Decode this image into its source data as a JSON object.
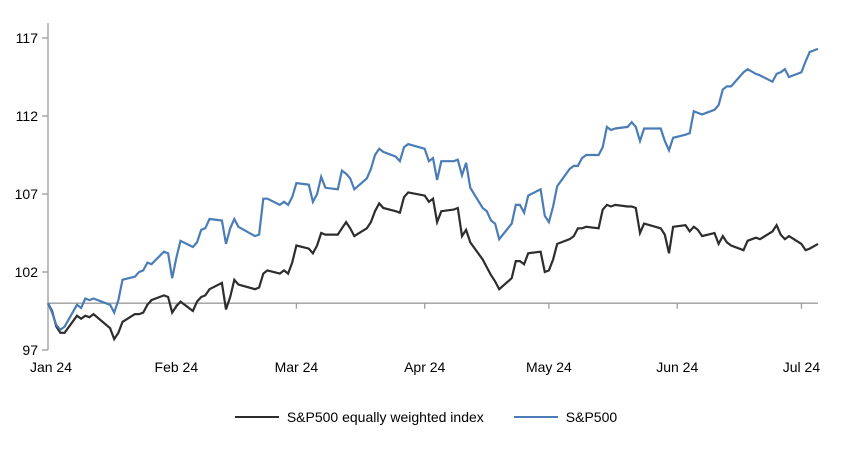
{
  "page": {
    "background": "#ffffff"
  },
  "chart_data": {
    "type": "line",
    "title": "",
    "subtitle": "",
    "legend_position": "bottom",
    "grid": false,
    "axis_color": "#9c9c9c",
    "label_color": "#000000",
    "baseline_value": 100,
    "x_axis": {
      "tick_labels": [
        "Jan 24",
        "Feb 24",
        "Mar 24",
        "Apr 24",
        "May 24",
        "Jun 24",
        "Jul 24"
      ],
      "tick_days": [
        0,
        31,
        60,
        91,
        121,
        152,
        182
      ],
      "range_days": [
        0,
        186
      ]
    },
    "y_axis": {
      "ticks": [
        97,
        102,
        107,
        112,
        117
      ],
      "range": [
        97,
        117
      ]
    },
    "series": [
      {
        "name": "S&P500 equally weighted index",
        "color": "#2d2d2d",
        "points": [
          [
            0,
            100.0
          ],
          [
            1,
            99.5
          ],
          [
            2,
            98.5
          ],
          [
            3,
            98.1
          ],
          [
            4,
            98.1
          ],
          [
            7,
            99.2
          ],
          [
            8,
            99.0
          ],
          [
            9,
            99.2
          ],
          [
            10,
            99.1
          ],
          [
            11,
            99.3
          ],
          [
            15,
            98.4
          ],
          [
            16,
            97.7
          ],
          [
            17,
            98.1
          ],
          [
            18,
            98.8
          ],
          [
            21,
            99.3
          ],
          [
            22,
            99.3
          ],
          [
            23,
            99.4
          ],
          [
            24,
            99.9
          ],
          [
            25,
            100.2
          ],
          [
            28,
            100.5
          ],
          [
            29,
            100.4
          ],
          [
            30,
            99.4
          ],
          [
            31,
            99.8
          ],
          [
            32,
            100.1
          ],
          [
            35,
            99.5
          ],
          [
            36,
            100.1
          ],
          [
            37,
            100.4
          ],
          [
            38,
            100.5
          ],
          [
            39,
            100.9
          ],
          [
            42,
            101.3
          ],
          [
            43,
            99.6
          ],
          [
            44,
            100.4
          ],
          [
            45,
            101.5
          ],
          [
            46,
            101.2
          ],
          [
            50,
            100.9
          ],
          [
            51,
            101.0
          ],
          [
            52,
            101.9
          ],
          [
            53,
            102.1
          ],
          [
            56,
            101.9
          ],
          [
            57,
            102.1
          ],
          [
            58,
            101.9
          ],
          [
            59,
            102.6
          ],
          [
            60,
            103.7
          ],
          [
            63,
            103.5
          ],
          [
            64,
            103.2
          ],
          [
            65,
            103.7
          ],
          [
            66,
            104.5
          ],
          [
            67,
            104.4
          ],
          [
            70,
            104.4
          ],
          [
            71,
            104.8
          ],
          [
            72,
            105.2
          ],
          [
            73,
            104.8
          ],
          [
            74,
            104.3
          ],
          [
            77,
            104.8
          ],
          [
            78,
            105.2
          ],
          [
            79,
            105.9
          ],
          [
            80,
            106.4
          ],
          [
            81,
            106.1
          ],
          [
            84,
            105.9
          ],
          [
            85,
            105.8
          ],
          [
            86,
            106.8
          ],
          [
            87,
            107.1
          ],
          [
            91,
            106.9
          ],
          [
            92,
            106.5
          ],
          [
            93,
            106.7
          ],
          [
            94,
            105.2
          ],
          [
            95,
            105.9
          ],
          [
            98,
            106.0
          ],
          [
            99,
            106.1
          ],
          [
            100,
            104.3
          ],
          [
            101,
            104.7
          ],
          [
            102,
            103.9
          ],
          [
            105,
            102.8
          ],
          [
            106,
            102.3
          ],
          [
            107,
            101.8
          ],
          [
            108,
            101.4
          ],
          [
            109,
            100.9
          ],
          [
            112,
            101.6
          ],
          [
            113,
            102.7
          ],
          [
            114,
            102.7
          ],
          [
            115,
            102.5
          ],
          [
            116,
            103.2
          ],
          [
            119,
            103.3
          ],
          [
            120,
            102.0
          ],
          [
            121,
            102.1
          ],
          [
            122,
            102.8
          ],
          [
            123,
            103.8
          ],
          [
            126,
            104.1
          ],
          [
            127,
            104.3
          ],
          [
            128,
            104.8
          ],
          [
            129,
            104.8
          ],
          [
            130,
            104.9
          ],
          [
            133,
            104.8
          ],
          [
            134,
            106.0
          ],
          [
            135,
            106.3
          ],
          [
            136,
            106.2
          ],
          [
            137,
            106.3
          ],
          [
            140,
            106.2
          ],
          [
            141,
            106.2
          ],
          [
            142,
            106.1
          ],
          [
            143,
            104.5
          ],
          [
            144,
            105.1
          ],
          [
            148,
            104.8
          ],
          [
            149,
            104.4
          ],
          [
            150,
            103.2
          ],
          [
            151,
            104.9
          ],
          [
            154,
            105.0
          ],
          [
            155,
            104.6
          ],
          [
            156,
            104.9
          ],
          [
            157,
            104.7
          ],
          [
            158,
            104.3
          ],
          [
            161,
            104.5
          ],
          [
            162,
            103.8
          ],
          [
            163,
            104.3
          ],
          [
            164,
            103.9
          ],
          [
            165,
            103.7
          ],
          [
            168,
            103.4
          ],
          [
            169,
            104.0
          ],
          [
            171,
            104.2
          ],
          [
            172,
            104.1
          ],
          [
            175,
            104.6
          ],
          [
            176,
            105.0
          ],
          [
            177,
            104.4
          ],
          [
            178,
            104.1
          ],
          [
            179,
            104.3
          ],
          [
            182,
            103.8
          ],
          [
            183,
            103.4
          ],
          [
            184,
            103.5
          ],
          [
            186,
            103.8
          ]
        ]
      },
      {
        "name": "S&P500",
        "color": "#4a7db6",
        "points": [
          [
            0,
            100.0
          ],
          [
            1,
            99.4
          ],
          [
            2,
            98.6
          ],
          [
            3,
            98.3
          ],
          [
            4,
            98.5
          ],
          [
            7,
            99.9
          ],
          [
            8,
            99.7
          ],
          [
            9,
            100.3
          ],
          [
            10,
            100.2
          ],
          [
            11,
            100.3
          ],
          [
            15,
            99.9
          ],
          [
            16,
            99.4
          ],
          [
            17,
            100.2
          ],
          [
            18,
            101.5
          ],
          [
            21,
            101.7
          ],
          [
            22,
            102.0
          ],
          [
            23,
            102.1
          ],
          [
            24,
            102.6
          ],
          [
            25,
            102.5
          ],
          [
            28,
            103.3
          ],
          [
            29,
            103.2
          ],
          [
            30,
            101.6
          ],
          [
            31,
            102.9
          ],
          [
            32,
            104.0
          ],
          [
            35,
            103.6
          ],
          [
            36,
            103.9
          ],
          [
            37,
            104.7
          ],
          [
            38,
            104.8
          ],
          [
            39,
            105.4
          ],
          [
            42,
            105.3
          ],
          [
            43,
            103.8
          ],
          [
            44,
            104.8
          ],
          [
            45,
            105.4
          ],
          [
            46,
            104.9
          ],
          [
            50,
            104.3
          ],
          [
            51,
            104.4
          ],
          [
            52,
            106.7
          ],
          [
            53,
            106.7
          ],
          [
            56,
            106.3
          ],
          [
            57,
            106.5
          ],
          [
            58,
            106.3
          ],
          [
            59,
            106.8
          ],
          [
            60,
            107.7
          ],
          [
            63,
            107.6
          ],
          [
            64,
            106.5
          ],
          [
            65,
            107.0
          ],
          [
            66,
            108.1
          ],
          [
            67,
            107.4
          ],
          [
            70,
            107.3
          ],
          [
            71,
            108.5
          ],
          [
            72,
            108.3
          ],
          [
            73,
            108.0
          ],
          [
            74,
            107.3
          ],
          [
            77,
            108.0
          ],
          [
            78,
            108.6
          ],
          [
            79,
            109.5
          ],
          [
            80,
            109.9
          ],
          [
            81,
            109.7
          ],
          [
            84,
            109.4
          ],
          [
            85,
            109.1
          ],
          [
            86,
            110.0
          ],
          [
            87,
            110.2
          ],
          [
            91,
            109.9
          ],
          [
            92,
            109.1
          ],
          [
            93,
            109.3
          ],
          [
            94,
            107.9
          ],
          [
            95,
            109.1
          ],
          [
            98,
            109.1
          ],
          [
            99,
            109.2
          ],
          [
            100,
            108.2
          ],
          [
            101,
            109.0
          ],
          [
            102,
            107.4
          ],
          [
            105,
            106.1
          ],
          [
            106,
            105.9
          ],
          [
            107,
            105.3
          ],
          [
            108,
            105.1
          ],
          [
            109,
            104.1
          ],
          [
            112,
            105.1
          ],
          [
            113,
            106.3
          ],
          [
            114,
            106.3
          ],
          [
            115,
            105.8
          ],
          [
            116,
            106.9
          ],
          [
            119,
            107.3
          ],
          [
            120,
            105.6
          ],
          [
            121,
            105.2
          ],
          [
            122,
            106.2
          ],
          [
            123,
            107.5
          ],
          [
            126,
            108.6
          ],
          [
            127,
            108.8
          ],
          [
            128,
            108.8
          ],
          [
            129,
            109.3
          ],
          [
            130,
            109.5
          ],
          [
            133,
            109.5
          ],
          [
            134,
            110.0
          ],
          [
            135,
            111.3
          ],
          [
            136,
            111.1
          ],
          [
            137,
            111.2
          ],
          [
            140,
            111.3
          ],
          [
            141,
            111.6
          ],
          [
            142,
            111.3
          ],
          [
            143,
            110.4
          ],
          [
            144,
            111.2
          ],
          [
            148,
            111.2
          ],
          [
            149,
            110.4
          ],
          [
            150,
            109.8
          ],
          [
            151,
            110.6
          ],
          [
            154,
            110.8
          ],
          [
            155,
            110.9
          ],
          [
            156,
            112.3
          ],
          [
            157,
            112.2
          ],
          [
            158,
            112.1
          ],
          [
            161,
            112.4
          ],
          [
            162,
            112.7
          ],
          [
            163,
            113.7
          ],
          [
            164,
            113.9
          ],
          [
            165,
            113.9
          ],
          [
            168,
            114.8
          ],
          [
            169,
            115.0
          ],
          [
            171,
            114.7
          ],
          [
            172,
            114.6
          ],
          [
            175,
            114.2
          ],
          [
            176,
            114.7
          ],
          [
            177,
            114.8
          ],
          [
            178,
            115.0
          ],
          [
            179,
            114.5
          ],
          [
            182,
            114.8
          ],
          [
            183,
            115.5
          ],
          [
            184,
            116.1
          ],
          [
            186,
            116.3
          ]
        ]
      }
    ]
  }
}
